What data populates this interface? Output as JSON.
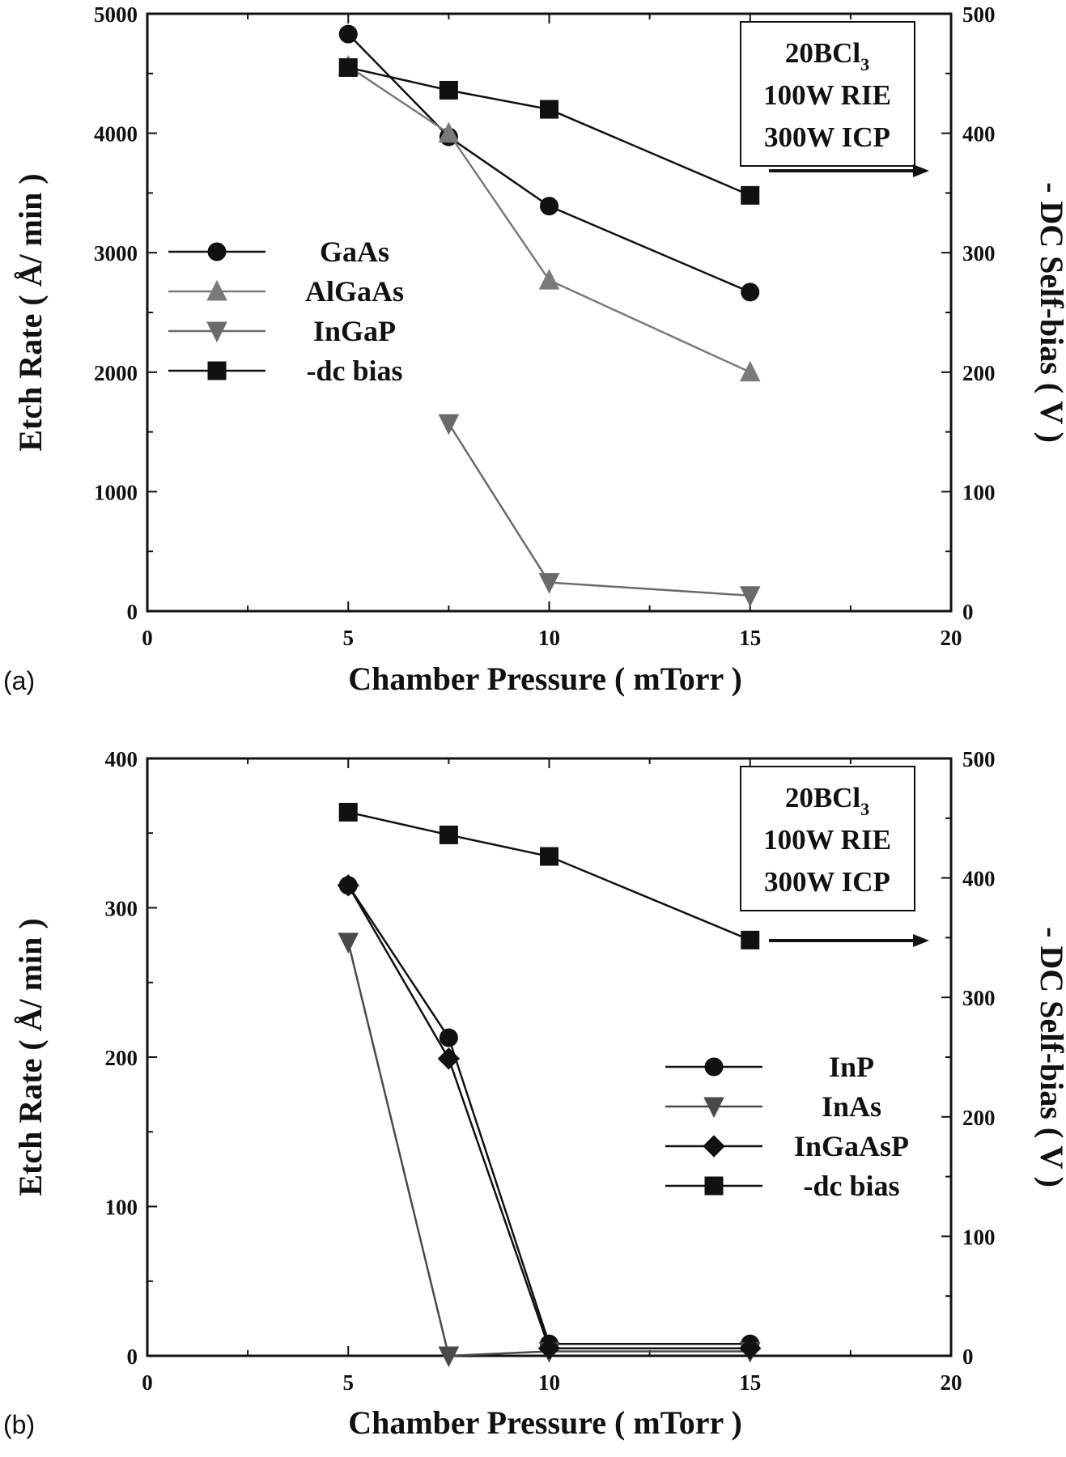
{
  "chart_data": [
    {
      "type": "line",
      "panel_label": "(a)",
      "xlabel": "Chamber Pressure ( mTorr )",
      "ylabel": "Etch Rate ( Å/ min )",
      "y2label": "- DC Self-bias ( V )",
      "xlim": [
        0,
        20
      ],
      "ylim": [
        0,
        5000
      ],
      "y2lim": [
        0,
        500
      ],
      "xticks": [
        0,
        5,
        10,
        15,
        20
      ],
      "yticks": [
        0,
        1000,
        2000,
        3000,
        4000,
        5000
      ],
      "y2ticks": [
        0,
        100,
        200,
        300,
        400,
        500
      ],
      "annotation": {
        "line1": "20BCl",
        "line1_sub": "3",
        "line2": "100W RIE",
        "line3": "300W ICP"
      },
      "legend_position": "left",
      "series": [
        {
          "name": "GaAs",
          "marker": "circle",
          "color": "#111111",
          "axis": "left",
          "x": [
            5,
            7.5,
            10,
            15
          ],
          "y": [
            4830,
            3970,
            3390,
            2670
          ]
        },
        {
          "name": "AlGaAs",
          "marker": "triangle-up",
          "color": "#7a7a7a",
          "axis": "left",
          "x": [
            5,
            7.5,
            10,
            15
          ],
          "y": [
            4560,
            4000,
            2770,
            2000
          ]
        },
        {
          "name": "InGaP",
          "marker": "triangle-down",
          "color": "#6a6a6a",
          "axis": "left",
          "x": [
            7.5,
            10,
            15
          ],
          "y": [
            1570,
            240,
            130
          ]
        },
        {
          "name": "-dc bias",
          "marker": "square",
          "color": "#111111",
          "axis": "right",
          "x": [
            5,
            7.5,
            10,
            15
          ],
          "y": [
            455,
            436,
            420,
            348
          ]
        }
      ]
    },
    {
      "type": "line",
      "panel_label": "(b)",
      "xlabel": "Chamber Pressure ( mTorr )",
      "ylabel": "Etch Rate ( Å/ min )",
      "y2label": "- DC Self-bias ( V )",
      "xlim": [
        0,
        20
      ],
      "ylim": [
        0,
        400
      ],
      "y2lim": [
        0,
        500
      ],
      "xticks": [
        0,
        5,
        10,
        15,
        20
      ],
      "yticks": [
        0,
        100,
        200,
        300,
        400
      ],
      "y2ticks": [
        0,
        100,
        200,
        300,
        400,
        500
      ],
      "annotation": {
        "line1": "20BCl",
        "line1_sub": "3",
        "line2": "100W RIE",
        "line3": "300W ICP"
      },
      "legend_position": "right",
      "series": [
        {
          "name": "InP",
          "marker": "circle",
          "color": "#111111",
          "axis": "left",
          "x": [
            5,
            7.5,
            10,
            15
          ],
          "y": [
            315,
            213,
            8,
            8
          ]
        },
        {
          "name": "InAs",
          "marker": "triangle-down",
          "color": "#4a4a4a",
          "axis": "left",
          "x": [
            5,
            7.5,
            10,
            15
          ],
          "y": [
            277,
            0,
            3,
            3
          ]
        },
        {
          "name": "InGaAsP",
          "marker": "diamond",
          "color": "#111111",
          "axis": "left",
          "x": [
            5,
            7.5,
            10,
            15
          ],
          "y": [
            315,
            199,
            5,
            5
          ]
        },
        {
          "name": "-dc bias",
          "marker": "square",
          "color": "#111111",
          "axis": "right",
          "x": [
            5,
            7.5,
            10,
            15
          ],
          "y": [
            455,
            436,
            418,
            348
          ]
        }
      ]
    }
  ]
}
